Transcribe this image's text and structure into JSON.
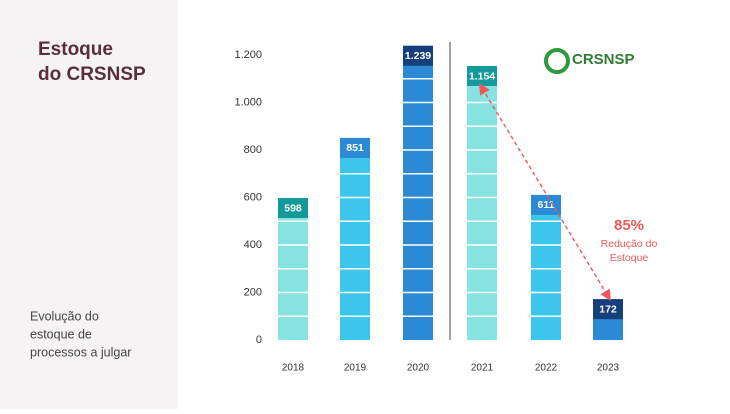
{
  "chart_data": {
    "type": "bar",
    "title": [
      "Estoque",
      "do CRSNSP"
    ],
    "subtitle": [
      "Evolução do",
      "estoque de",
      "processos a julgar"
    ],
    "logo": "CRSNSP",
    "categories": [
      "2018",
      "2019",
      "2020",
      "2021",
      "2022",
      "2023"
    ],
    "values": [
      598,
      851,
      1239,
      1154,
      611,
      172
    ],
    "value_labels": [
      "598",
      "851",
      "1.239",
      "1.154",
      "611",
      "172"
    ],
    "colors": [
      "#86e3e1",
      "#3cc6ee",
      "#2b8ad3",
      "#86e3e1",
      "#3cc6ee",
      "#2b8ad3"
    ],
    "label_colors": [
      "#159a9c",
      "#2b8ad3",
      "#173f7c",
      "#159a9c",
      "#2b8ad3",
      "#173f7c"
    ],
    "ylim": [
      0,
      1300
    ],
    "yticks": [
      0,
      200,
      400,
      600,
      800,
      {
        "value": 1000,
        "label": "1.000"
      },
      {
        "value": 1200,
        "label": "1.200"
      }
    ],
    "annotation": [
      "85%",
      "Redução do",
      "Estoque"
    ],
    "annotation_color": "#f0585a"
  }
}
